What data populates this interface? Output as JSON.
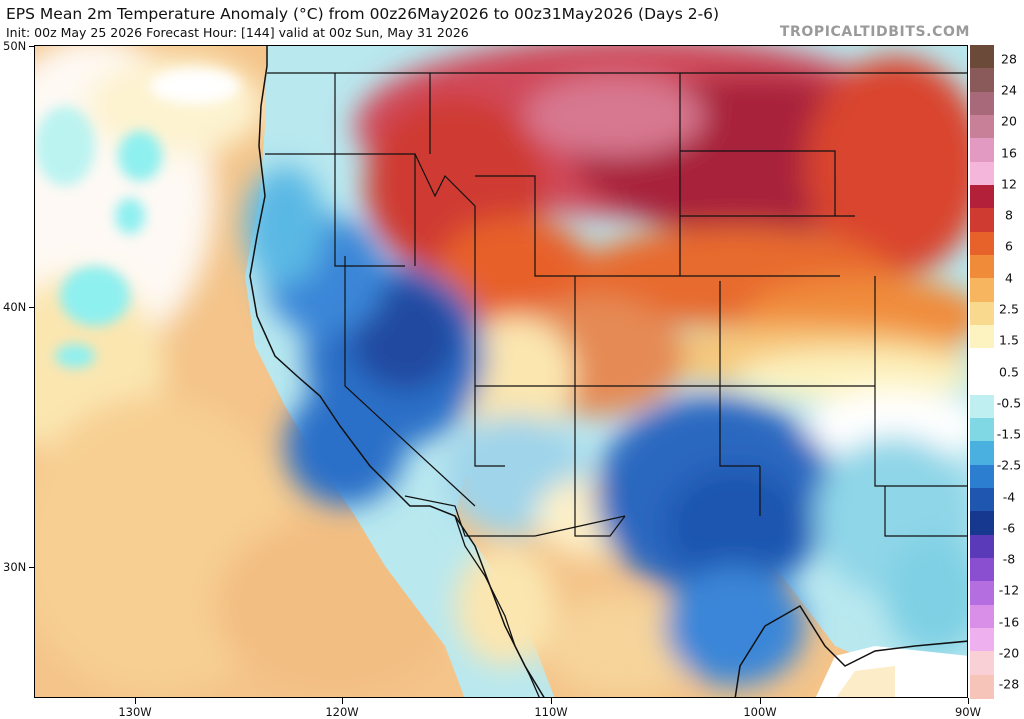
{
  "header": {
    "title": "EPS Mean 2m Temperature Anomaly (°C) from 00z26May2026 to 00z31May2026 (Days 2-6)",
    "subtitle": "Init: 00z May 25 2026   Forecast Hour: [144]   valid at 00z Sun, May 31 2026",
    "brand": "TROPICALTIDBITS.COM"
  },
  "map": {
    "region": "Western United States",
    "latitude_labels": [
      "50N",
      "40N",
      "30N"
    ],
    "longitude_labels": [
      "130W",
      "120W",
      "110W",
      "100W",
      "90W"
    ]
  },
  "colorbar": {
    "labels": [
      "28",
      "24",
      "20",
      "16",
      "12",
      "8",
      "6",
      "4",
      "2.5",
      "1.5",
      "0.5",
      "-0.5",
      "-1.5",
      "-2.5",
      "-4",
      "-6",
      "-8",
      "-12",
      "-16",
      "-20",
      "-28"
    ],
    "colors": [
      "#6b4a3a",
      "#8a5a5a",
      "#a86a7a",
      "#c87f98",
      "#e29ac2",
      "#f5b6dc",
      "#b3203a",
      "#cf3b30",
      "#e7612b",
      "#f08b3a",
      "#f6b55e",
      "#f9d98e",
      "#fdf3c0",
      "#ffffff",
      "#ffffff",
      "#bfeff1",
      "#7fd8e4",
      "#4ab0e0",
      "#2c7fd0",
      "#1f56b0",
      "#16398f",
      "#5a3ab8",
      "#8a4fd0",
      "#b46ee0",
      "#d98ee8",
      "#eeb0ef",
      "#f8d0d5",
      "#f6c4b8"
    ]
  }
}
